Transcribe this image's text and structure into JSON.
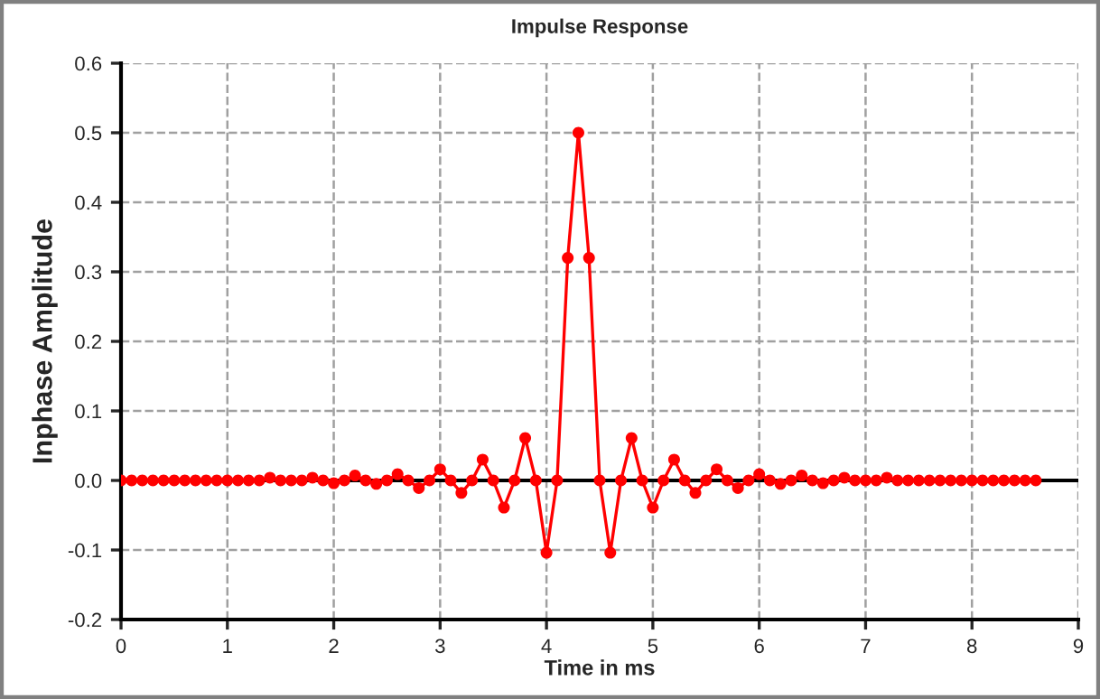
{
  "chart_data": {
    "type": "line",
    "title": "Impulse Response",
    "xlabel": "Time in ms",
    "ylabel": "Inphase Amplitude",
    "x": [
      0,
      0.1,
      0.2,
      0.3,
      0.4,
      0.5,
      0.6,
      0.7,
      0.8,
      0.9,
      1,
      1.1,
      1.2,
      1.3,
      1.4,
      1.5,
      1.6,
      1.7,
      1.8,
      1.9,
      2,
      2.1,
      2.2,
      2.3,
      2.4,
      2.5,
      2.6,
      2.7,
      2.8,
      2.9,
      3,
      3.1,
      3.2,
      3.3,
      3.4,
      3.5,
      3.6,
      3.7,
      3.8,
      3.9,
      4,
      4.1,
      4.2,
      4.3,
      4.4,
      4.5,
      4.6,
      4.7,
      4.8,
      4.9,
      5,
      5.1,
      5.2,
      5.3,
      5.4,
      5.5,
      5.6,
      5.7,
      5.8,
      5.9,
      6,
      6.1,
      6.2,
      6.3,
      6.4,
      6.5,
      6.6,
      6.7,
      6.8,
      6.9,
      7,
      7.1,
      7.2,
      7.3,
      7.4,
      7.5,
      7.6,
      7.7,
      7.8,
      7.9,
      8,
      8.1,
      8.2,
      8.3,
      8.4,
      8.5,
      8.6
    ],
    "series": [
      {
        "color": "#ff0000",
        "values": [
          0,
          0,
          0,
          0,
          0,
          0,
          0,
          0,
          0,
          0,
          0,
          0,
          0,
          0,
          0.004,
          0,
          0,
          0,
          0.004,
          0,
          -0.004,
          0,
          0.007,
          0,
          -0.005,
          0,
          0.009,
          0,
          -0.011,
          0,
          0.016,
          0,
          -0.018,
          0,
          0.03,
          0,
          -0.039,
          0,
          0.061,
          0,
          -0.104,
          0,
          0.32,
          0.5,
          0.32,
          0,
          -0.104,
          0,
          0.061,
          0,
          -0.039,
          0,
          0.03,
          0,
          -0.018,
          0,
          0.016,
          0,
          -0.011,
          0,
          0.009,
          0,
          -0.005,
          0,
          0.007,
          0,
          -0.004,
          0,
          0.004,
          0,
          0,
          0,
          0.004,
          0,
          0,
          0,
          0,
          0,
          0,
          0,
          0,
          0,
          0,
          0,
          0,
          0,
          0
        ]
      }
    ],
    "xlim": [
      0,
      9
    ],
    "xticks": [
      0,
      1,
      2,
      3,
      4,
      5,
      6,
      7,
      8,
      9
    ],
    "ylim": [
      -0.2,
      0.6
    ],
    "yticks": [
      -0.2,
      -0.1,
      {
        "value": 0,
        "label": "0.0"
      },
      0.1,
      0.2,
      0.3,
      0.4,
      0.5,
      0.6
    ],
    "ref_lines": [
      {
        "axis": "y",
        "value": 0,
        "color": "#000000"
      }
    ],
    "grid": true,
    "marker": "circle",
    "line_style": "solid"
  }
}
